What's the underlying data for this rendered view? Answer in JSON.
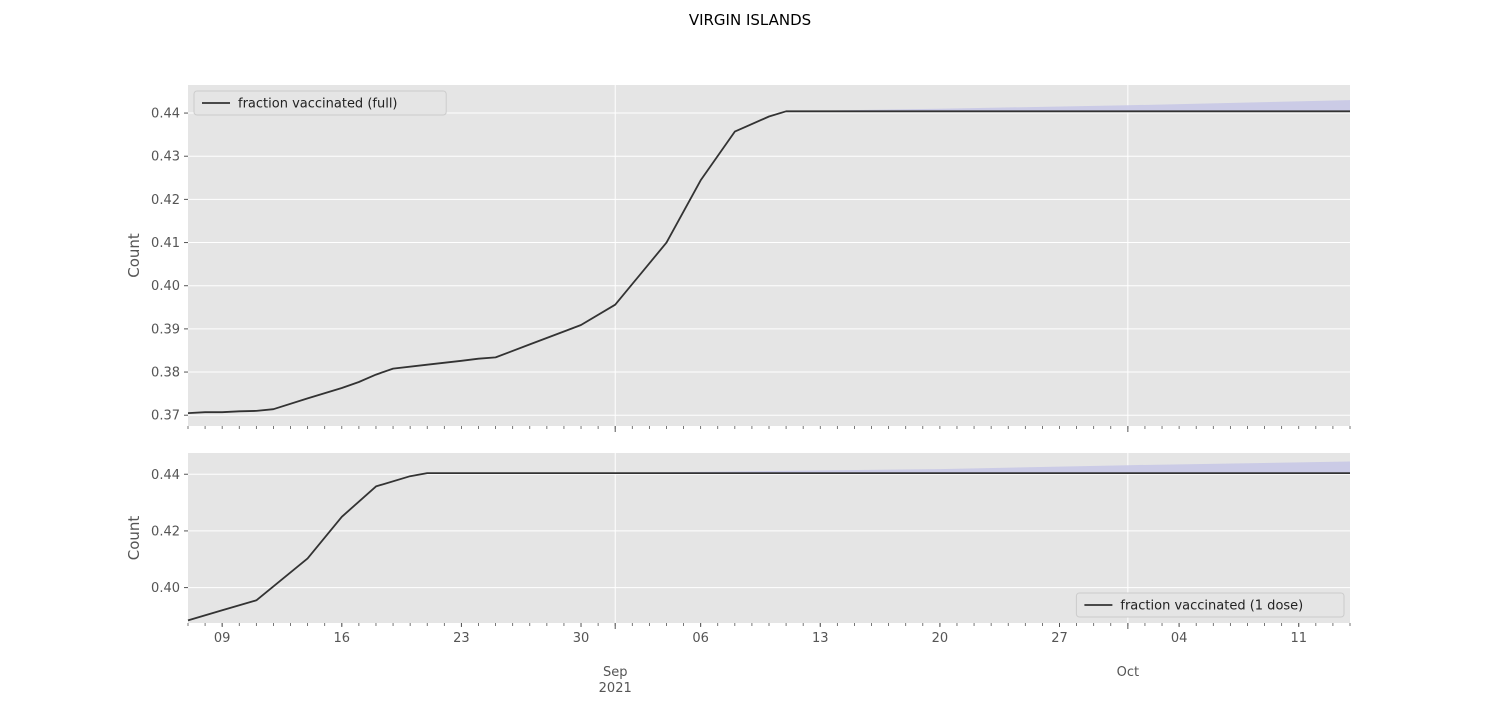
{
  "figure": {
    "title": "VIRGIN ISLANDS"
  },
  "x_axis": {
    "tick_labels": [
      "09",
      "16",
      "23",
      "30",
      "06",
      "13",
      "20",
      "27",
      "04",
      "11"
    ],
    "tick_dates": [
      "2021-08-09",
      "2021-08-16",
      "2021-08-23",
      "2021-08-30",
      "2021-09-06",
      "2021-09-13",
      "2021-09-20",
      "2021-09-27",
      "2021-10-04",
      "2021-10-11"
    ],
    "month_labels": [
      {
        "date": "2021-09-01",
        "month": "Sep",
        "year": "2021"
      },
      {
        "date": "2021-10-01",
        "month": "Oct",
        "year": ""
      }
    ],
    "range": [
      "2021-08-07",
      "2021-10-14"
    ]
  },
  "colors": {
    "line": "#333333",
    "band": "#c8c8e6",
    "axes_bg": "#e5e5e5",
    "grid": "#ffffff",
    "tick_text": "#555555"
  },
  "chart_data": [
    {
      "type": "line",
      "title": "",
      "ylabel": "Count",
      "ylim": [
        0.3675,
        0.4465
      ],
      "yticks": [
        0.37,
        0.38,
        0.39,
        0.4,
        0.41,
        0.42,
        0.43,
        0.44
      ],
      "ytick_labels": [
        "0.37",
        "0.38",
        "0.39",
        "0.40",
        "0.41",
        "0.42",
        "0.43",
        "0.44"
      ],
      "grid": true,
      "legend": {
        "position": "top-left",
        "label": "fraction vaccinated (full)"
      },
      "series": [
        {
          "name": "fraction vaccinated (full)",
          "x": [
            "2021-08-07",
            "2021-08-08",
            "2021-08-09",
            "2021-08-10",
            "2021-08-11",
            "2021-08-12",
            "2021-08-14",
            "2021-08-16",
            "2021-08-17",
            "2021-08-18",
            "2021-08-19",
            "2021-08-21",
            "2021-08-23",
            "2021-08-24",
            "2021-08-25",
            "2021-08-27",
            "2021-08-29",
            "2021-08-30",
            "2021-09-01",
            "2021-09-04",
            "2021-09-06",
            "2021-09-08",
            "2021-09-10",
            "2021-09-11",
            "2021-09-20",
            "2021-10-01",
            "2021-10-14"
          ],
          "y": [
            0.3705,
            0.3707,
            0.3707,
            0.3709,
            0.371,
            0.3714,
            0.3739,
            0.3763,
            0.3777,
            0.3794,
            0.3808,
            0.3817,
            0.3826,
            0.3831,
            0.3834,
            0.3864,
            0.3894,
            0.3909,
            0.3956,
            0.41,
            0.4244,
            0.4357,
            0.4392,
            0.4404,
            0.4404,
            0.4404,
            0.4404
          ]
        }
      ],
      "band": {
        "x": [
          "2021-09-11",
          "2021-09-20",
          "2021-10-01",
          "2021-10-14"
        ],
        "lower": [
          0.4404,
          0.4404,
          0.4404,
          0.4404
        ],
        "upper": [
          0.4404,
          0.441,
          0.4418,
          0.443
        ]
      }
    },
    {
      "type": "line",
      "title": "",
      "ylabel": "Count",
      "ylim": [
        0.3875,
        0.4475
      ],
      "yticks": [
        0.4,
        0.42,
        0.44
      ],
      "ytick_labels": [
        "0.40",
        "0.42",
        "0.44"
      ],
      "grid": true,
      "legend": {
        "position": "bottom-right",
        "label": "fraction vaccinated (1 dose)"
      },
      "series": [
        {
          "name": "fraction vaccinated (1 dose)",
          "x": [
            "2021-08-07",
            "2021-08-09",
            "2021-08-11",
            "2021-08-14",
            "2021-08-16",
            "2021-08-18",
            "2021-08-20",
            "2021-08-21",
            "2021-09-01",
            "2021-09-20",
            "2021-10-01",
            "2021-10-14"
          ],
          "y": [
            0.3884,
            0.392,
            0.3955,
            0.4103,
            0.425,
            0.4357,
            0.4393,
            0.4404,
            0.4404,
            0.4404,
            0.4404,
            0.4404
          ]
        }
      ],
      "band": {
        "x": [
          "2021-08-21",
          "2021-09-01",
          "2021-09-20",
          "2021-10-01",
          "2021-10-14"
        ],
        "lower": [
          0.4404,
          0.4404,
          0.4404,
          0.4404,
          0.4404
        ],
        "upper": [
          0.4404,
          0.4405,
          0.4418,
          0.4432,
          0.4445
        ]
      }
    }
  ]
}
